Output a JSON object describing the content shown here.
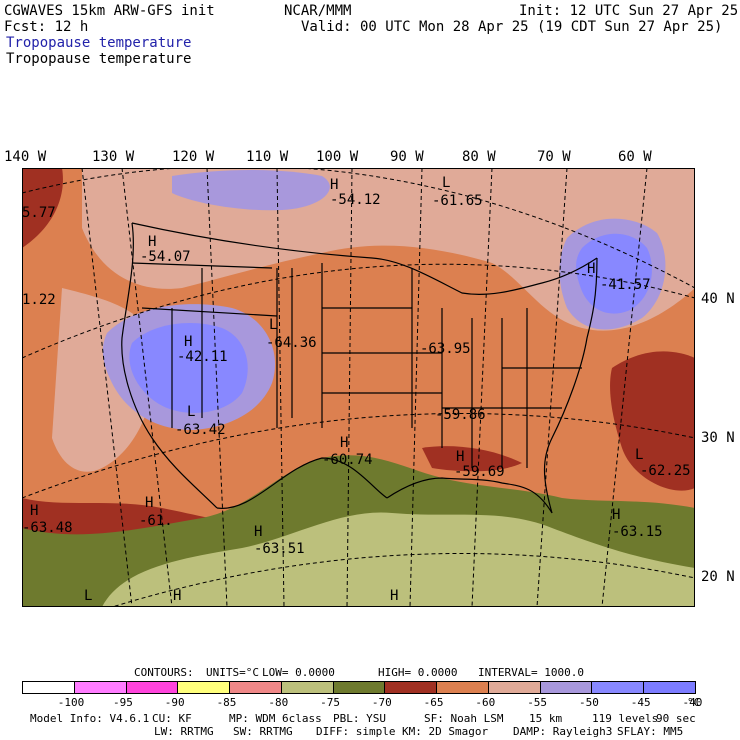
{
  "header": {
    "title": "CGWAVES 15km ARW-GFS init",
    "org": "NCAR/MMM",
    "init": "Init: 12 UTC Sun 27 Apr 25",
    "fcst": "Fcst:   12 h",
    "valid": "Valid: 00 UTC Mon 28 Apr 25 (19 CDT Sun 27 Apr 25)",
    "field_blue": "Tropopause temperature",
    "field_black": "Tropopause temperature"
  },
  "map": {
    "lon_labels": [
      "140 W",
      "130 W",
      "120 W",
      "110 W",
      "100 W",
      "90 W",
      "80 W",
      "70 W",
      "60 W"
    ],
    "lat_labels": [
      "40 N",
      "30 N",
      "20 N"
    ],
    "centers": [
      {
        "letter": "H",
        "value": "-54.12"
      },
      {
        "letter": "L",
        "value": "-61.65"
      },
      {
        "letter": "H",
        "value": "-54.07"
      },
      {
        "letter": "H",
        "value": "-41.57"
      },
      {
        "letter": "L",
        "value": "-64.36"
      },
      {
        "letter": "H",
        "value": "-42.11"
      },
      {
        "letter": "",
        "value": "-63.95"
      },
      {
        "letter": "L",
        "value": "-63.42"
      },
      {
        "letter": "",
        "value": "-59.86"
      },
      {
        "letter": "H",
        "value": "-60.74"
      },
      {
        "letter": "H",
        "value": "-59.69"
      },
      {
        "letter": "L",
        "value": "-62.25"
      },
      {
        "letter": "H",
        "value": "-63.48"
      },
      {
        "letter": "H",
        "value": "-61."
      },
      {
        "letter": "H",
        "value": "-63.51"
      },
      {
        "letter": "H",
        "value": "-63.15"
      },
      {
        "letter": "",
        "value": "5.77"
      },
      {
        "letter": "",
        "value": "1.22"
      },
      {
        "letter": "L",
        "value": ""
      },
      {
        "letter": "H",
        "value": ""
      },
      {
        "letter": "H",
        "value": ""
      }
    ]
  },
  "contours_line": {
    "contours": "CONTOURS:",
    "units": "UNITS=°C",
    "low": "LOW=  0.0000",
    "high": "HIGH=  0.0000",
    "interval": "INTERVAL=   1000.0"
  },
  "colorbar": {
    "ticks": [
      "-100",
      "-95",
      "-90",
      "-85",
      "-80",
      "-75",
      "-70",
      "-65",
      "-60",
      "-55",
      "-50",
      "-45",
      "-40"
    ],
    "unit": "°C",
    "colors": [
      "#ffffff",
      "#ff7cff",
      "#ff44dc",
      "#ffff7c",
      "#f08888",
      "#bcc07c",
      "#6e7a2e",
      "#a03022",
      "#dc8050",
      "#e0aa98",
      "#a898dc",
      "#8888ff",
      "#7c7cff"
    ]
  },
  "footer": {
    "line1": [
      "Model Info: V4.6.1",
      "CU: KF",
      "MP: WDM 6class",
      "PBL: YSU",
      "SF: Noah LSM",
      "15 km",
      "119 levels",
      "90 sec"
    ],
    "line2": [
      "LW: RRTMG",
      "SW: RRTMG",
      "DIFF: simple",
      "KM: 2D Smagor",
      "DAMP: Rayleigh3",
      "SFLAY: MM5"
    ]
  }
}
